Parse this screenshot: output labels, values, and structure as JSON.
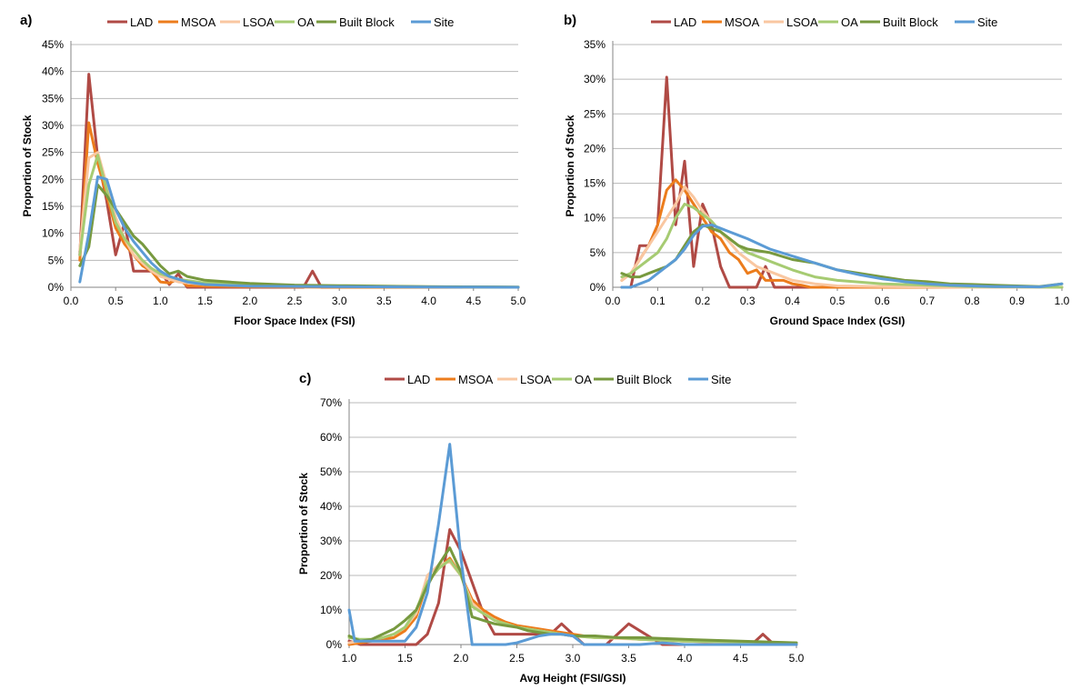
{
  "series_styles": [
    {
      "name": "LAD",
      "color": "#B04A45"
    },
    {
      "name": "MSOA",
      "color": "#EC7C1C"
    },
    {
      "name": "LSOA",
      "color": "#F9C7A1"
    },
    {
      "name": "OA",
      "color": "#A6CB72"
    },
    {
      "name": "Built Block",
      "color": "#77993F"
    },
    {
      "name": "Site",
      "color": "#5B9BD5"
    }
  ],
  "chart_data": [
    {
      "panel": "a)",
      "type": "line",
      "xlabel": "Floor Space Index (FSI)",
      "ylabel": "Proportion of Stock",
      "xlim": [
        0,
        5
      ],
      "ylim": [
        0,
        45
      ],
      "xticks": [
        "0.0",
        "0.5",
        "1.0",
        "1.5",
        "2.0",
        "2.5",
        "3.0",
        "3.5",
        "4.0",
        "4.5",
        "5.0"
      ],
      "yticks": [
        "0%",
        "5%",
        "10%",
        "15%",
        "20%",
        "25%",
        "30%",
        "35%",
        "40%",
        "45%"
      ],
      "series": [
        {
          "name": "LAD",
          "x": [
            0.1,
            0.2,
            0.3,
            0.4,
            0.5,
            0.6,
            0.7,
            0.8,
            0.9,
            1.0,
            1.1,
            1.2,
            1.3,
            1.5,
            2.0,
            2.5,
            2.6,
            2.7,
            2.8,
            3.0,
            4.0,
            5.0
          ],
          "values": [
            6,
            39.5,
            24,
            16,
            6,
            12,
            3,
            3,
            3,
            3,
            0.5,
            2.5,
            0,
            0,
            0,
            0,
            0,
            3,
            0,
            0,
            0,
            0
          ]
        },
        {
          "name": "MSOA",
          "x": [
            0.1,
            0.2,
            0.3,
            0.4,
            0.5,
            0.6,
            0.7,
            0.8,
            0.9,
            1.0,
            1.1,
            1.2,
            1.3,
            1.5,
            2.0,
            3.0,
            4.0,
            5.0
          ],
          "values": [
            5,
            30.5,
            23,
            17,
            11,
            8,
            6,
            4,
            3,
            1,
            0.8,
            1.5,
            0.3,
            0.2,
            0.1,
            0,
            0,
            0
          ]
        },
        {
          "name": "LSOA",
          "x": [
            0.1,
            0.2,
            0.3,
            0.4,
            0.5,
            0.6,
            0.7,
            0.8,
            0.9,
            1.0,
            1.1,
            1.2,
            1.5,
            2.0,
            3.0,
            4.0,
            5.0
          ],
          "values": [
            7,
            24,
            25,
            19,
            13,
            9,
            6,
            4.5,
            3,
            2,
            1.5,
            1,
            0.5,
            0.3,
            0.2,
            0.1,
            0
          ]
        },
        {
          "name": "OA",
          "x": [
            0.1,
            0.2,
            0.3,
            0.4,
            0.5,
            0.6,
            0.7,
            0.8,
            0.9,
            1.0,
            1.1,
            1.2,
            1.5,
            2.0,
            3.0,
            4.0,
            5.0
          ],
          "values": [
            6,
            19,
            24.5,
            18,
            12,
            9,
            7,
            5,
            3.5,
            2.5,
            2,
            1.5,
            0.8,
            0.5,
            0.2,
            0.1,
            0
          ]
        },
        {
          "name": "Built Block",
          "x": [
            0.1,
            0.2,
            0.3,
            0.4,
            0.5,
            0.6,
            0.7,
            0.8,
            0.9,
            1.0,
            1.1,
            1.2,
            1.3,
            1.5,
            2.0,
            2.5,
            3.0,
            4.0,
            5.0
          ],
          "values": [
            4,
            7.5,
            19,
            17,
            14.5,
            12,
            9.5,
            8,
            6,
            4,
            2.5,
            3,
            2,
            1.3,
            0.7,
            0.4,
            0.3,
            0.1,
            0.05
          ]
        },
        {
          "name": "Site",
          "x": [
            0.1,
            0.2,
            0.3,
            0.4,
            0.5,
            0.6,
            0.7,
            0.8,
            0.9,
            1.0,
            1.1,
            1.2,
            1.3,
            1.5,
            2.0,
            3.0,
            4.0,
            5.0
          ],
          "values": [
            1,
            10,
            20.5,
            20,
            14.5,
            11,
            8.5,
            6.5,
            4.5,
            3,
            2,
            1.5,
            1,
            0.5,
            0.2,
            0.1,
            0.05,
            0
          ]
        }
      ]
    },
    {
      "panel": "b)",
      "type": "line",
      "xlabel": "Ground Space Index (GSI)",
      "ylabel": "Proportion of Stock",
      "xlim": [
        0,
        1
      ],
      "ylim": [
        0,
        35
      ],
      "xticks": [
        "0.0",
        "0.1",
        "0.2",
        "0.3",
        "0.4",
        "0.5",
        "0.6",
        "0.7",
        "0.8",
        "0.9",
        "1.0"
      ],
      "yticks": [
        "0%",
        "5%",
        "10%",
        "15%",
        "20%",
        "25%",
        "30%",
        "35%"
      ],
      "series": [
        {
          "name": "LAD",
          "x": [
            0.02,
            0.04,
            0.06,
            0.08,
            0.1,
            0.12,
            0.14,
            0.16,
            0.18,
            0.2,
            0.22,
            0.24,
            0.26,
            0.28,
            0.3,
            0.32,
            0.34,
            0.36,
            0.38,
            0.4,
            0.5,
            0.6,
            0.8,
            1.0
          ],
          "values": [
            0,
            0,
            6,
            6,
            9,
            30.3,
            9,
            18.2,
            3,
            12,
            9,
            3,
            0,
            0,
            0,
            0,
            3,
            0,
            0,
            0,
            0,
            0,
            0,
            0
          ]
        },
        {
          "name": "MSOA",
          "x": [
            0.02,
            0.04,
            0.06,
            0.08,
            0.1,
            0.12,
            0.14,
            0.16,
            0.18,
            0.2,
            0.22,
            0.24,
            0.26,
            0.28,
            0.3,
            0.32,
            0.34,
            0.36,
            0.38,
            0.4,
            0.42,
            0.44,
            0.5,
            0.6,
            0.8,
            1.0
          ],
          "values": [
            1,
            2,
            4,
            6,
            9,
            14,
            15.5,
            14,
            12,
            10,
            8,
            7,
            5,
            4,
            2,
            2.5,
            1,
            1,
            1,
            0.5,
            0.3,
            0,
            0,
            0,
            0,
            0
          ]
        },
        {
          "name": "LSOA",
          "x": [
            0.02,
            0.04,
            0.06,
            0.08,
            0.1,
            0.12,
            0.14,
            0.16,
            0.18,
            0.2,
            0.22,
            0.24,
            0.26,
            0.28,
            0.3,
            0.32,
            0.34,
            0.36,
            0.4,
            0.45,
            0.5,
            0.6,
            0.8,
            1.0
          ],
          "values": [
            1,
            2,
            4,
            6,
            8,
            10,
            12,
            14.5,
            13,
            11,
            9.5,
            8,
            6.5,
            5,
            4,
            3,
            2.5,
            2,
            1,
            0.5,
            0.2,
            0.1,
            0,
            0
          ]
        },
        {
          "name": "OA",
          "x": [
            0.02,
            0.04,
            0.06,
            0.08,
            0.1,
            0.12,
            0.14,
            0.16,
            0.18,
            0.2,
            0.22,
            0.24,
            0.26,
            0.28,
            0.3,
            0.32,
            0.34,
            0.36,
            0.4,
            0.45,
            0.5,
            0.6,
            0.7,
            0.8,
            1.0
          ],
          "values": [
            1.5,
            2,
            3,
            4,
            5,
            7,
            10,
            12,
            11.5,
            10.5,
            9.5,
            8,
            7,
            6,
            5,
            4.5,
            4,
            3.5,
            2.5,
            1.5,
            1,
            0.5,
            0.3,
            0.1,
            0
          ]
        },
        {
          "name": "Built Block",
          "x": [
            0.02,
            0.04,
            0.06,
            0.08,
            0.1,
            0.12,
            0.14,
            0.16,
            0.18,
            0.2,
            0.22,
            0.24,
            0.26,
            0.28,
            0.3,
            0.35,
            0.4,
            0.45,
            0.5,
            0.55,
            0.6,
            0.65,
            0.7,
            0.75,
            0.8,
            0.85,
            0.9,
            0.95,
            1.0
          ],
          "values": [
            2,
            1.5,
            1.5,
            2,
            2.5,
            3,
            4,
            6,
            8,
            9,
            8.5,
            8,
            7,
            6,
            5.5,
            5,
            4,
            3.5,
            2.5,
            2,
            1.5,
            1,
            0.8,
            0.5,
            0.4,
            0.3,
            0.2,
            0.1,
            0.5
          ]
        },
        {
          "name": "Site",
          "x": [
            0.02,
            0.04,
            0.06,
            0.08,
            0.1,
            0.12,
            0.14,
            0.16,
            0.18,
            0.2,
            0.22,
            0.24,
            0.26,
            0.28,
            0.3,
            0.35,
            0.4,
            0.45,
            0.5,
            0.55,
            0.6,
            0.65,
            0.7,
            0.75,
            0.8,
            0.85,
            0.9,
            0.95,
            1.0
          ],
          "values": [
            0,
            0,
            0.5,
            1,
            2,
            3,
            4,
            5.5,
            7.5,
            8.8,
            9,
            8.5,
            8,
            7.5,
            7,
            5.5,
            4.5,
            3.5,
            2.5,
            1.8,
            1.2,
            0.8,
            0.5,
            0.3,
            0.2,
            0.1,
            0.1,
            0.05,
            0.5
          ]
        }
      ]
    },
    {
      "panel": "c)",
      "type": "line",
      "xlabel": "Avg Height (FSI/GSI)",
      "ylabel": "Proportion of Stock",
      "xlim": [
        1,
        5
      ],
      "ylim": [
        0,
        70
      ],
      "xticks": [
        "1.0",
        "1.5",
        "2.0",
        "2.5",
        "3.0",
        "3.5",
        "4.0",
        "4.5",
        "5.0"
      ],
      "yticks": [
        "0%",
        "10%",
        "20%",
        "30%",
        "40%",
        "50%",
        "60%",
        "70%"
      ],
      "series": [
        {
          "name": "LAD",
          "x": [
            1.0,
            1.1,
            1.2,
            1.3,
            1.4,
            1.5,
            1.6,
            1.7,
            1.8,
            1.9,
            2.0,
            2.1,
            2.2,
            2.3,
            2.4,
            2.5,
            2.6,
            2.7,
            2.8,
            2.9,
            3.0,
            3.1,
            3.2,
            3.3,
            3.4,
            3.5,
            3.6,
            3.7,
            3.8,
            3.9,
            4.0,
            4.5,
            4.6,
            4.7,
            4.8,
            5.0
          ],
          "values": [
            1,
            0,
            0,
            0,
            0,
            0,
            0,
            3,
            12,
            33.3,
            27,
            18,
            9,
            3,
            3,
            3,
            3,
            3,
            3,
            6,
            3,
            0,
            0,
            0,
            3,
            6,
            4,
            2,
            0,
            0,
            0,
            0,
            0,
            3,
            0,
            0
          ]
        },
        {
          "name": "MSOA",
          "x": [
            1.0,
            1.1,
            1.2,
            1.3,
            1.4,
            1.5,
            1.6,
            1.7,
            1.8,
            1.9,
            2.0,
            2.1,
            2.2,
            2.3,
            2.4,
            2.5,
            2.6,
            2.7,
            2.8,
            2.9,
            3.0,
            3.2,
            3.4,
            3.6,
            4.0,
            4.5,
            5.0
          ],
          "values": [
            0,
            0.5,
            1,
            1.5,
            2,
            4,
            8,
            18,
            22,
            25,
            20,
            13,
            10,
            8,
            6.5,
            5.5,
            5,
            4.5,
            4,
            3.5,
            3,
            2,
            2,
            1.5,
            1,
            0.5,
            0.3
          ]
        },
        {
          "name": "LSOA",
          "x": [
            1.0,
            1.1,
            1.2,
            1.3,
            1.4,
            1.5,
            1.6,
            1.7,
            1.8,
            1.9,
            2.0,
            2.1,
            2.2,
            2.3,
            2.4,
            2.5,
            2.6,
            2.7,
            2.8,
            2.9,
            3.0,
            3.2,
            3.4,
            3.6,
            4.0,
            4.5,
            5.0
          ],
          "values": [
            0.5,
            1,
            1.5,
            2,
            3,
            5,
            9,
            20,
            23,
            24,
            20,
            12,
            9,
            7,
            6,
            5,
            4.5,
            4,
            3.5,
            3,
            2.5,
            2,
            1.8,
            1.5,
            1,
            0.6,
            0.3
          ]
        },
        {
          "name": "OA",
          "x": [
            1.0,
            1.1,
            1.2,
            1.3,
            1.4,
            1.5,
            1.6,
            1.7,
            1.8,
            1.9,
            2.0,
            2.1,
            2.2,
            2.3,
            2.4,
            2.5,
            2.6,
            2.7,
            2.8,
            2.9,
            3.0,
            3.2,
            3.4,
            3.6,
            4.0,
            4.5,
            5.0
          ],
          "values": [
            2,
            1.5,
            1.5,
            2,
            3,
            5,
            10,
            18,
            22,
            24.5,
            20,
            11,
            9,
            7,
            6,
            5,
            4.5,
            4,
            3.5,
            3,
            2.5,
            2,
            2,
            1.5,
            1,
            0.8,
            0.5
          ]
        },
        {
          "name": "Built Block",
          "x": [
            1.0,
            1.1,
            1.2,
            1.3,
            1.4,
            1.5,
            1.6,
            1.7,
            1.8,
            1.9,
            2.0,
            2.1,
            2.2,
            2.3,
            2.4,
            2.5,
            2.6,
            2.7,
            2.8,
            2.9,
            3.0,
            3.2,
            3.4,
            3.6,
            4.0,
            4.5,
            5.0
          ],
          "values": [
            2.5,
            1,
            1.5,
            3,
            4.5,
            7,
            10,
            17,
            23,
            28,
            21,
            8,
            7,
            6,
            5.5,
            5,
            4,
            3.5,
            3,
            3,
            2.5,
            2.5,
            2,
            2,
            1.5,
            1,
            0.5
          ]
        },
        {
          "name": "Site",
          "x": [
            1.0,
            1.05,
            1.1,
            1.2,
            1.3,
            1.4,
            1.5,
            1.6,
            1.7,
            1.8,
            1.9,
            2.0,
            2.1,
            2.2,
            2.3,
            2.4,
            2.5,
            2.6,
            2.7,
            2.8,
            2.9,
            3.0,
            3.1,
            3.2,
            3.4,
            3.6,
            3.8,
            4.0,
            4.5,
            5.0
          ],
          "values": [
            10,
            1,
            1,
            1,
            1,
            1,
            1,
            5,
            15,
            35,
            58,
            25,
            0,
            0,
            0,
            0,
            0.5,
            1.5,
            2.5,
            3,
            3,
            2.5,
            0,
            0,
            0,
            0,
            0.5,
            0,
            0,
            0
          ]
        }
      ]
    }
  ]
}
